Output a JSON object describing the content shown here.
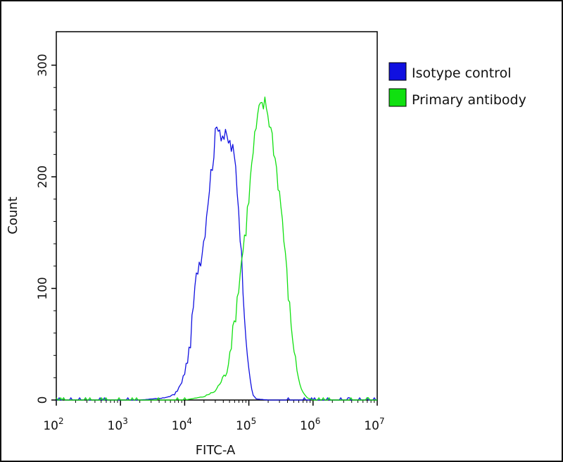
{
  "chart_data": {
    "type": "line",
    "xlabel": "FITC-A",
    "ylabel": "Count",
    "x_scale": "log",
    "xlim": [
      100,
      10000000
    ],
    "ylim": [
      0,
      330
    ],
    "x_ticks": [
      {
        "base": "10",
        "exp": "2",
        "value": 100
      },
      {
        "base": "10",
        "exp": "3",
        "value": 1000
      },
      {
        "base": "10",
        "exp": "4",
        "value": 10000
      },
      {
        "base": "10",
        "exp": "5",
        "value": 100000
      },
      {
        "base": "10",
        "exp": "6",
        "value": 1000000
      },
      {
        "base": "10",
        "exp": "7",
        "value": 10000000
      }
    ],
    "y_ticks": [
      "0",
      "100",
      "200",
      "300"
    ],
    "legend_position": "right",
    "series": [
      {
        "name": "Isotype control",
        "color": "#1010e0",
        "points": [
          [
            100,
            0
          ],
          [
            2000,
            0
          ],
          [
            5000,
            2
          ],
          [
            7000,
            5
          ],
          [
            9000,
            15
          ],
          [
            10000,
            25
          ],
          [
            12000,
            45
          ],
          [
            14000,
            90
          ],
          [
            16000,
            120
          ],
          [
            18000,
            130
          ],
          [
            20000,
            145
          ],
          [
            23000,
            180
          ],
          [
            26000,
            205
          ],
          [
            30000,
            235
          ],
          [
            33000,
            250
          ],
          [
            37000,
            240
          ],
          [
            42000,
            235
          ],
          [
            48000,
            232
          ],
          [
            55000,
            225
          ],
          [
            62000,
            210
          ],
          [
            70000,
            170
          ],
          [
            80000,
            110
          ],
          [
            90000,
            60
          ],
          [
            100000,
            25
          ],
          [
            115000,
            5
          ],
          [
            130000,
            1
          ],
          [
            200000,
            0
          ]
        ]
      },
      {
        "name": "Primary antibody",
        "color": "#10e010",
        "points": [
          [
            100,
            0
          ],
          [
            10000,
            0
          ],
          [
            20000,
            3
          ],
          [
            30000,
            8
          ],
          [
            45000,
            25
          ],
          [
            60000,
            70
          ],
          [
            75000,
            120
          ],
          [
            90000,
            155
          ],
          [
            105000,
            195
          ],
          [
            120000,
            230
          ],
          [
            140000,
            255
          ],
          [
            160000,
            265
          ],
          [
            185000,
            265
          ],
          [
            210000,
            250
          ],
          [
            240000,
            230
          ],
          [
            280000,
            200
          ],
          [
            330000,
            165
          ],
          [
            380000,
            120
          ],
          [
            450000,
            70
          ],
          [
            550000,
            30
          ],
          [
            650000,
            10
          ],
          [
            800000,
            2
          ],
          [
            1000000,
            0
          ],
          [
            10000000,
            0
          ]
        ]
      }
    ]
  }
}
